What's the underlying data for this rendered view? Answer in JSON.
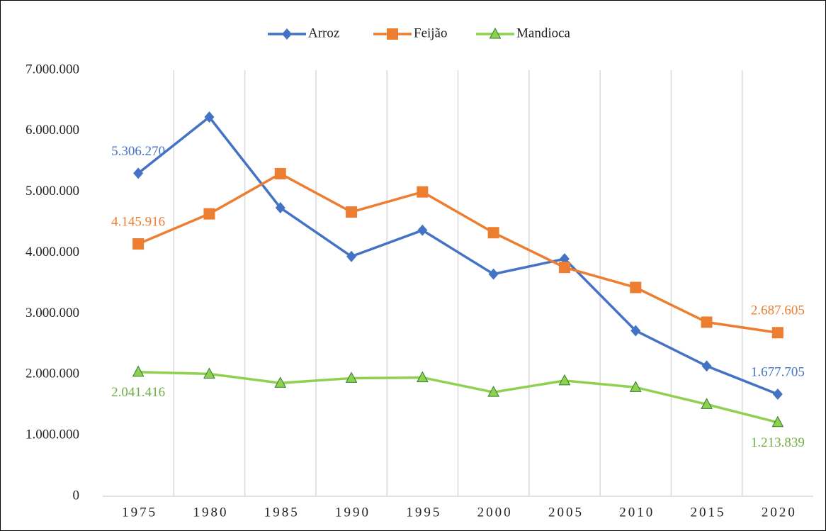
{
  "chart_data": {
    "type": "line",
    "categories": [
      "1975",
      "1980",
      "1985",
      "1990",
      "1995",
      "2000",
      "2005",
      "2010",
      "2015",
      "2020"
    ],
    "series": [
      {
        "name": "Arroz",
        "color": "#4472c4",
        "marker": "diamond",
        "values": [
          5306270,
          6230000,
          4740000,
          3940000,
          4370000,
          3650000,
          3900000,
          2720000,
          2140000,
          1677705
        ],
        "value_labels": [
          "5.306.270",
          null,
          null,
          null,
          null,
          null,
          null,
          null,
          null,
          "1.677.705"
        ]
      },
      {
        "name": "Feijão",
        "color": "#ed7d31",
        "marker": "square",
        "values": [
          4145916,
          4640000,
          5300000,
          4670000,
          5000000,
          4330000,
          3760000,
          3430000,
          2860000,
          2687605
        ],
        "value_labels": [
          "4.145.916",
          null,
          null,
          null,
          null,
          null,
          null,
          null,
          null,
          "2.687.605"
        ]
      },
      {
        "name": "Mandioca",
        "color": "#8fd14f",
        "marker": "triangle",
        "values": [
          2041416,
          2010000,
          1860000,
          1940000,
          1950000,
          1710000,
          1900000,
          1790000,
          1510000,
          1213839
        ],
        "value_labels": [
          "2.041.416",
          null,
          null,
          null,
          null,
          null,
          null,
          null,
          null,
          "1.213.839"
        ]
      }
    ],
    "ylim": [
      0,
      7000000
    ],
    "yticks": [
      0,
      {
        "value": 1000000,
        "label": "1.000.000"
      },
      {
        "value": 2000000,
        "label": "2.000.000"
      },
      {
        "value": 3000000,
        "label": "3.000.000"
      },
      {
        "value": 4000000,
        "label": "4.000.000"
      },
      {
        "value": 5000000,
        "label": "5.000.000"
      },
      {
        "value": 6000000,
        "label": "6.000.000"
      },
      {
        "value": 7000000,
        "label": "7.000.000"
      }
    ],
    "grid": "vertical",
    "legend": "top"
  }
}
